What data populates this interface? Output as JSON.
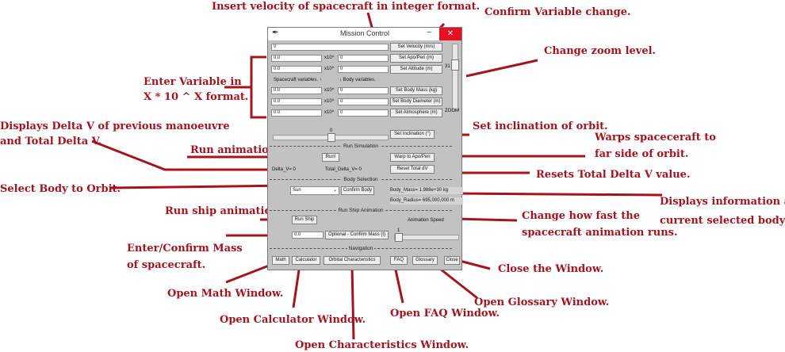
{
  "annotations": {
    "insert_velocity": "Insert velocity of spacecraft in integer format.",
    "confirm_variable": "Confirm Variable change.",
    "change_zoom": "Change zoom level.",
    "enter_variable_1": "Enter Variable in",
    "enter_variable_2": "X * 10 ^ X format.",
    "displays_delta_1": "Displays Delta V of previous manoeuvre",
    "displays_delta_2": "and Total Delta V.",
    "set_inclination": "Set inclination of orbit.",
    "run_animation": "Run animation.",
    "warps_1": "Warps spaceceraft to",
    "warps_2": "far side of orbit.",
    "resets_total": "Resets Total Delta V value.",
    "select_body": "Select Body to Orbit.",
    "displays_info_1": "Displays information about",
    "displays_info_2": "current selected body.",
    "run_ship": "Run ship animation",
    "change_speed_1": "Change how fast the",
    "change_speed_2": "spacecraft animation runs.",
    "enter_mass_1": "Enter/Confirm Mass",
    "enter_mass_2": "of spacecraft.",
    "close_window": "Close the Window.",
    "open_math": "Open Math Window.",
    "open_glossary": "Open Glossary Window.",
    "open_calculator": "Open Calculator Window.",
    "open_faq": "Open FAQ Window.",
    "open_characteristics": "Open Characteristics Window."
  },
  "window": {
    "title": "Mission Control",
    "minimize": "–",
    "close": "✕",
    "velocity_value": "0",
    "set_velocity": "Set Velocity (m/s)",
    "rows": [
      {
        "mantissa": "0.0",
        "x10": "x10^",
        "exponent": "0",
        "button": "Set Apo/Peri (m)"
      },
      {
        "mantissa": "0.0",
        "x10": "x10^",
        "exponent": "0",
        "button": "Set Altitude (m)"
      }
    ],
    "spacecraft_variables": "Spacecraft variables. ↑",
    "body_variables": "↓ Body variables.",
    "body_rows": [
      {
        "mantissa": "0.0",
        "x10": "x10^",
        "exponent": "0",
        "button": "Set Body Mass (kg)"
      },
      {
        "mantissa": "0.0",
        "x10": "x10^",
        "exponent": "0",
        "button": "Set Body Diameter (m)"
      },
      {
        "mantissa": "0.0",
        "x10": "x10^",
        "exponent": "0",
        "button": "Set Atmosphere (m)"
      }
    ],
    "zoom_value": "31",
    "zoom_label": "ZOOM",
    "inclination_value": "0",
    "inclination_fraction": 0.5,
    "set_inclination": "Set Inclination (°)",
    "run_simulation": "Run Simulation",
    "run_button": "Run!",
    "warp_button": "Warp to Apo/Peri",
    "delta_v": "Delta_V= 0",
    "total_delta_v": "Total_Delta_V= 0",
    "reset_total_dv": "Reset Total dV",
    "body_selection": "Body Selection",
    "body_selected": "Sun",
    "confirm_body": "Confirm Body",
    "body_mass": "Body_Mass= 1.988e+30 kg",
    "body_radius": "Body_Radius= 695,000,000 m",
    "run_ship_animation": "Run Ship Animation",
    "run_ship": "Run Ship",
    "animation_speed": "Animation Speed",
    "speed_value": "1",
    "mass_value": "0.0",
    "confirm_mass": "Optional - Confirm Mass (t)",
    "navigation": "Navigation",
    "nav_buttons": {
      "math": "Math",
      "calculator": "Calculator",
      "orbital": "Orbital Characteristics",
      "faq": "FAQ",
      "glossary": "Glossary",
      "close": "Close"
    }
  }
}
